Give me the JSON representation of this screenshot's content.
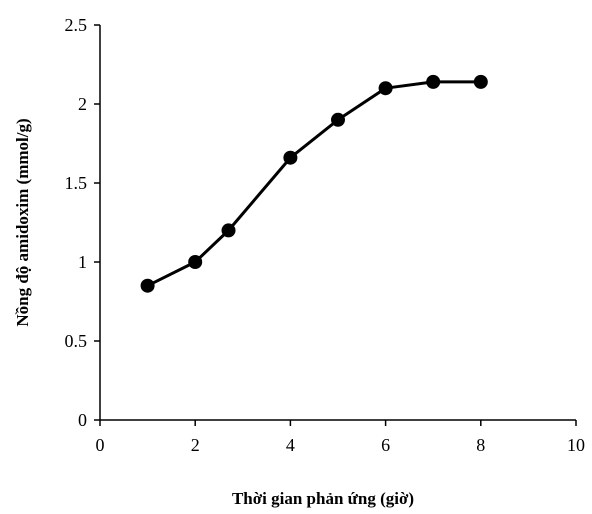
{
  "chart_data": {
    "type": "line",
    "title": "",
    "xlabel": "Thời gian phản ứng (giờ)",
    "ylabel": "Nồng độ amidoxim (mmol/g)",
    "xlim": [
      0,
      10
    ],
    "ylim": [
      0,
      2.5
    ],
    "xticks": [
      0,
      2,
      4,
      6,
      8,
      10
    ],
    "xtick_labels": [
      "0",
      "2",
      "4",
      "6",
      "8",
      "10"
    ],
    "yticks": [
      0,
      0.5,
      1,
      1.5,
      2,
      2.5
    ],
    "ytick_labels": [
      "0",
      "0.5",
      "1",
      "1.5",
      "2",
      "2.5"
    ],
    "grid": false,
    "series": [
      {
        "x": [
          1,
          2,
          2.7,
          4,
          5,
          6,
          7,
          8
        ],
        "y": [
          0.85,
          1.0,
          1.2,
          1.66,
          1.9,
          2.1,
          2.14,
          2.14
        ],
        "color": "#000000",
        "marker": "circle"
      }
    ]
  }
}
